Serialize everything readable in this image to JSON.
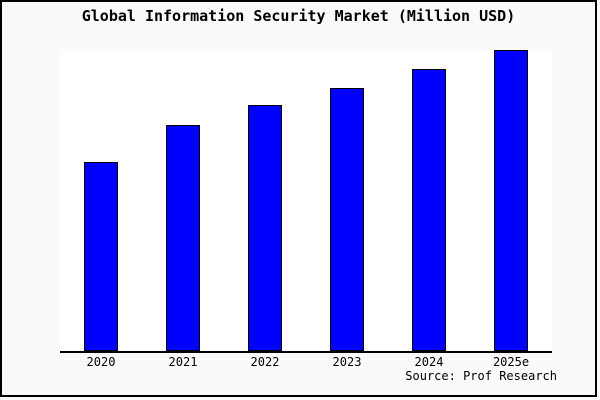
{
  "title": "Global Information Security Market (Million USD)",
  "source_note": "Source: Prof Research",
  "colors": {
    "figure_background": "#FAFAF8",
    "plot_background": "#FFFFFF",
    "bar_fill": "#0000FF",
    "bar_border": "#000000",
    "frame_border": "#000000",
    "text": "#000000"
  },
  "chart_data": {
    "type": "bar",
    "title": "Global Information Security Market (Million USD)",
    "categories": [
      "2020",
      "2021",
      "2022",
      "2023",
      "2024",
      "2025e"
    ],
    "values": [
      62.6,
      75.0,
      81.3,
      87.1,
      93.4,
      99.7
    ],
    "xlabel": "",
    "ylabel": "",
    "ylim": [
      0,
      100
    ],
    "grid": false,
    "legend": false,
    "y_axis_hidden": true,
    "note": "no y-axis ticks or gridlines shown; values are bar heights as percent of plot height (2025e = tallest)"
  }
}
